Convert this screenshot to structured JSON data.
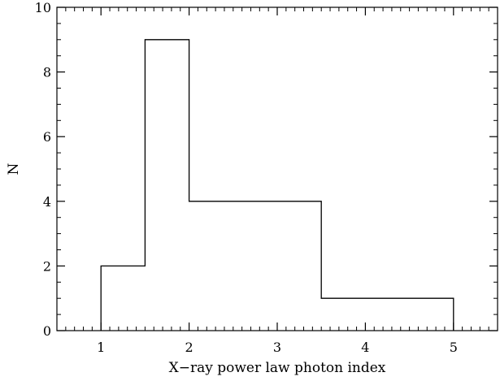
{
  "chart_data": {
    "type": "histogram",
    "xlabel": "X−ray power law photon index",
    "ylabel": "N",
    "xlim": [
      0.5,
      5.5
    ],
    "ylim": [
      0,
      10
    ],
    "x_ticks": [
      1,
      2,
      3,
      4,
      5
    ],
    "y_ticks": [
      0,
      2,
      4,
      6,
      8,
      10
    ],
    "x_minor_step": 0.1,
    "y_minor_step": 0.5,
    "bin_edges": [
      1.0,
      1.5,
      2.0,
      2.5,
      3.0,
      3.5,
      4.0,
      4.5,
      5.0
    ],
    "counts": [
      2,
      9,
      4,
      4,
      4,
      1,
      1,
      1
    ],
    "grid": false,
    "line_color": "#000000"
  }
}
